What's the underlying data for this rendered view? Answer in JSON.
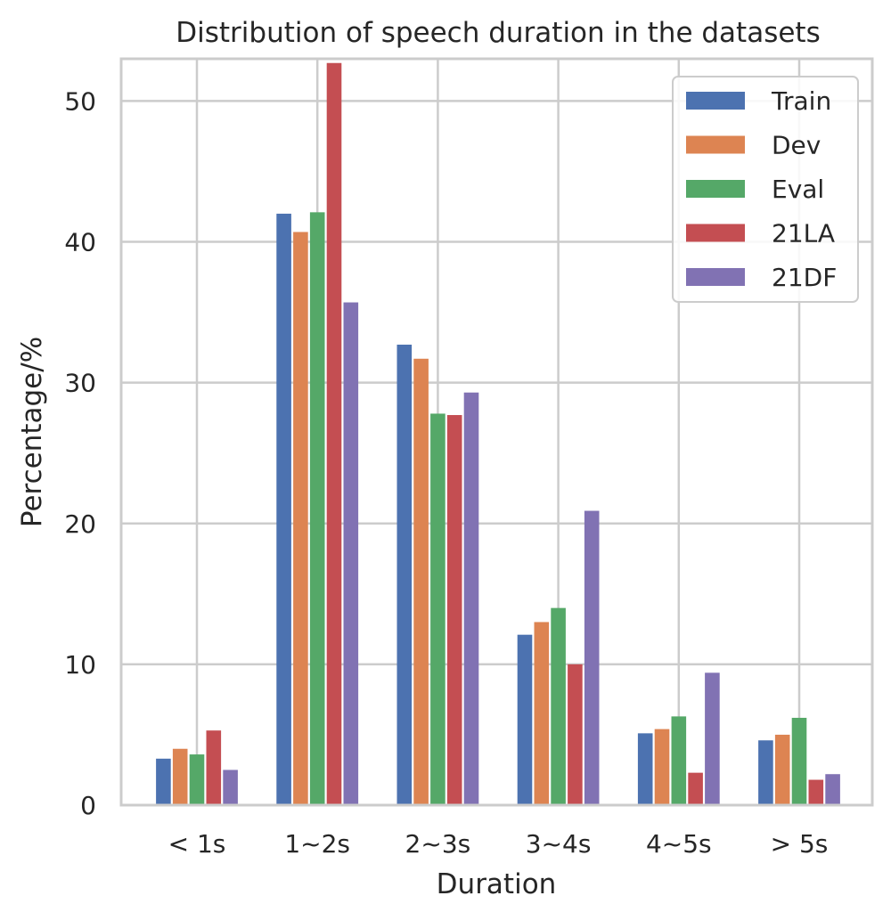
{
  "chart_data": {
    "type": "bar",
    "title": "Distribution of speech duration in the datasets",
    "xlabel": "Duration",
    "ylabel": "Percentage/%",
    "ylim": [
      0,
      53
    ],
    "yticks": [
      0,
      10,
      20,
      30,
      40,
      50
    ],
    "grid": true,
    "legend_position": "top-right",
    "categories": [
      "< 1s",
      "1~2s",
      "2~3s",
      "3~4s",
      "4~5s",
      "> 5s"
    ],
    "series": [
      {
        "name": "Train",
        "color": "#4c72b0",
        "values": [
          3.3,
          42.0,
          32.7,
          12.1,
          5.1,
          4.6
        ]
      },
      {
        "name": "Dev",
        "color": "#dd8452",
        "values": [
          4.0,
          40.7,
          31.7,
          13.0,
          5.4,
          5.0
        ]
      },
      {
        "name": "Eval",
        "color": "#55a868",
        "values": [
          3.6,
          42.1,
          27.8,
          14.0,
          6.3,
          6.2
        ]
      },
      {
        "name": "21LA",
        "color": "#c44e52",
        "values": [
          5.3,
          52.7,
          27.7,
          10.0,
          2.3,
          1.8
        ]
      },
      {
        "name": "21DF",
        "color": "#8172b3",
        "values": [
          2.5,
          35.7,
          29.3,
          20.9,
          9.4,
          2.2
        ]
      }
    ]
  }
}
